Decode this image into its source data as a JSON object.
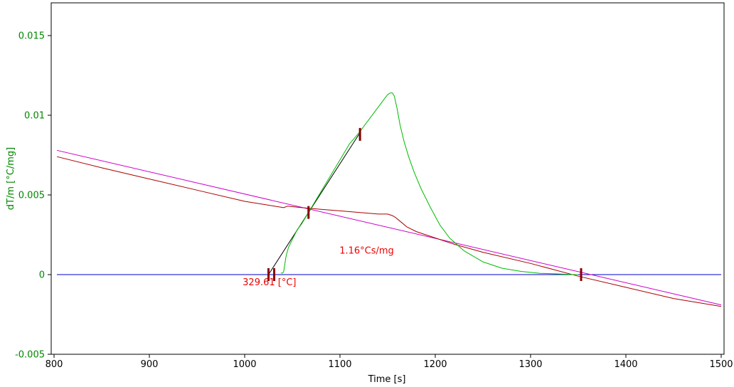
{
  "chart_data": {
    "type": "line",
    "xlabel": "Time [s]",
    "ylabel": "dT/m  [°C/mg]",
    "xlim": [
      800,
      1500
    ],
    "ylim": [
      -0.005,
      0.0175
    ],
    "xticks": [
      800,
      900,
      1000,
      1100,
      1200,
      1300,
      1400,
      1500
    ],
    "yticks": [
      -0.005,
      0,
      0.005,
      0.01,
      0.015
    ],
    "ytick_labels": [
      "-0.005",
      "0",
      "0.005",
      "0.01",
      "0.015"
    ],
    "grid": false,
    "colors": {
      "signal": "#00bb00",
      "baseline_fit": "#aa0000",
      "extrapolated_baseline": "#cc00cc",
      "zero_line": "#0000cc",
      "tangent": "#000000",
      "markers": "#880000",
      "annotation": "#ee0000",
      "y_axis_text": "#008800"
    },
    "series": [
      {
        "key": "signal",
        "x": [
          1038,
          1040,
          1041,
          1042,
          1043,
          1044,
          1046,
          1050,
          1055,
          1060,
          1065,
          1070,
          1080,
          1090,
          1100,
          1110,
          1120,
          1130,
          1140,
          1145,
          1150,
          1153,
          1155,
          1157,
          1160,
          1163,
          1167,
          1172,
          1178,
          1185,
          1195,
          1205,
          1215,
          1230,
          1250,
          1270,
          1290,
          1310,
          1330,
          1340,
          1345,
          1350
        ],
        "y": [
          0.0001,
          0.0001,
          0.0002,
          0.0006,
          0.001,
          0.0013,
          0.0017,
          0.0022,
          0.0028,
          0.0032,
          0.0037,
          0.0042,
          0.0052,
          0.0062,
          0.0072,
          0.0082,
          0.0089,
          0.0097,
          0.0105,
          0.0109,
          0.0113,
          0.0114,
          0.0114,
          0.0112,
          0.0104,
          0.0094,
          0.0084,
          0.0074,
          0.0064,
          0.0054,
          0.0042,
          0.0031,
          0.0023,
          0.0015,
          0.0008,
          0.0004,
          0.0002,
          8e-05,
          4e-05,
          2e-05,
          0.0,
          0.0
        ]
      },
      {
        "key": "baseline_fit",
        "x": [
          803,
          850,
          900,
          950,
          1000,
          1041,
          1045,
          1060,
          1080,
          1100,
          1120,
          1140,
          1150,
          1155,
          1158,
          1162,
          1170,
          1180,
          1200,
          1220,
          1250,
          1300,
          1350,
          1400,
          1450,
          1500
        ],
        "y": [
          0.0074,
          0.0067,
          0.006,
          0.0053,
          0.0046,
          0.0042,
          0.0043,
          0.0042,
          0.0041,
          0.004,
          0.0039,
          0.0038,
          0.0038,
          0.0037,
          0.0036,
          0.0034,
          0.003,
          0.0027,
          0.0023,
          0.0019,
          0.0014,
          0.0007,
          -0.0001,
          -0.0008,
          -0.0015,
          -0.002
        ]
      },
      {
        "key": "extrapolated_baseline",
        "x": [
          803,
          1500
        ],
        "y": [
          0.0078,
          -0.0019
        ]
      },
      {
        "key": "zero_line",
        "x": [
          803,
          1500
        ],
        "y": [
          0,
          0
        ]
      },
      {
        "key": "tangent",
        "x": [
          1025,
          1121
        ],
        "y": [
          0,
          0.0089
        ]
      }
    ],
    "markers": [
      {
        "x": 1025,
        "y": 0
      },
      {
        "x": 1031,
        "y": 0
      },
      {
        "x": 1067,
        "y": 0.0039
      },
      {
        "x": 1121,
        "y": 0.0088
      },
      {
        "x": 1353,
        "y": 0
      }
    ],
    "annotations": [
      {
        "text": "1.16°Cs/mg",
        "x": 1128,
        "y": 0.0015
      },
      {
        "text": "329.61 [°C]",
        "x": 1026,
        "y": -0.0005
      }
    ]
  }
}
